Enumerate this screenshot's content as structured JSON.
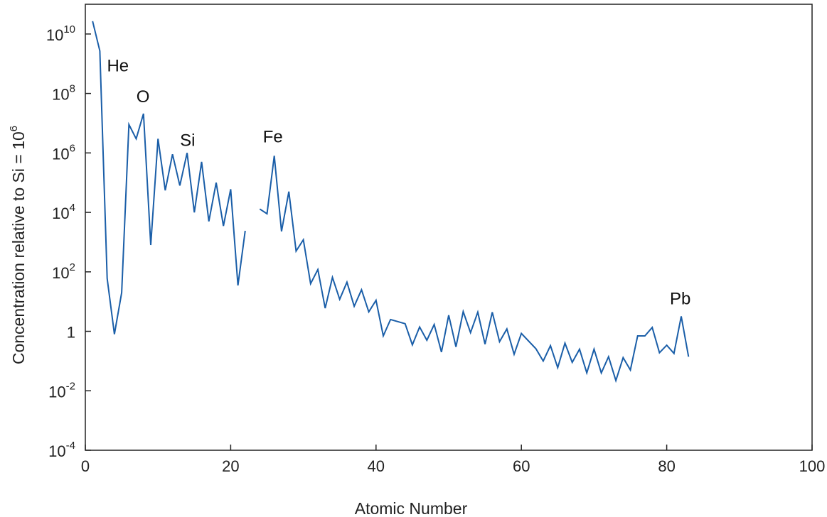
{
  "chart_data": {
    "type": "line",
    "title": "",
    "xlabel": "Atomic Number",
    "ylabel": "Concentration relative to Si = 10",
    "ylabel_exponent": "6",
    "xlim": [
      0,
      100
    ],
    "ylim": [
      0.0001,
      100000000000
    ],
    "yscale": "log",
    "grid": false,
    "color": "#1a5ea8",
    "x_ticks": [
      {
        "value": 0,
        "label": "0"
      },
      {
        "value": 20,
        "label": "20"
      },
      {
        "value": 40,
        "label": "40"
      },
      {
        "value": 60,
        "label": "60"
      },
      {
        "value": 80,
        "label": "80"
      },
      {
        "value": 100,
        "label": "100"
      }
    ],
    "y_ticks": [
      {
        "value": 10000000000,
        "base": "10",
        "exp": "10"
      },
      {
        "value": 100000000,
        "base": "10",
        "exp": "8"
      },
      {
        "value": 1000000,
        "base": "10",
        "exp": "6"
      },
      {
        "value": 10000,
        "base": "10",
        "exp": "4"
      },
      {
        "value": 100,
        "base": "10",
        "exp": "2"
      },
      {
        "value": 1,
        "base": "1",
        "exp": ""
      },
      {
        "value": 0.01,
        "base": "10",
        "exp": "-2"
      },
      {
        "value": 0.0001,
        "base": "10",
        "exp": "-4"
      }
    ],
    "series": [
      {
        "segments": [
          [
            [
              1,
              27000000000
            ],
            [
              2,
              2700000000
            ],
            [
              3,
              60
            ],
            [
              4,
              0.8
            ],
            [
              5,
              20
            ],
            [
              6,
              9000000
            ],
            [
              7,
              3000000
            ],
            [
              8,
              21000000
            ],
            [
              9,
              800
            ],
            [
              10,
              3000000
            ],
            [
              11,
              55000
            ],
            [
              12,
              900000
            ],
            [
              13,
              80000
            ],
            [
              14,
              1000000
            ],
            [
              15,
              10000
            ],
            [
              16,
              500000
            ],
            [
              17,
              5000
            ],
            [
              18,
              100000
            ],
            [
              19,
              3500
            ],
            [
              20,
              60000
            ],
            [
              21,
              35
            ],
            [
              22,
              2400
            ]
          ],
          [
            [
              24,
              13000
            ],
            [
              25,
              9000
            ],
            [
              26,
              800000
            ],
            [
              27,
              2300
            ],
            [
              28,
              50000
            ],
            [
              29,
              500
            ],
            [
              30,
              1200
            ],
            [
              31,
              40
            ],
            [
              32,
              120
            ],
            [
              33,
              6
            ],
            [
              34,
              65
            ],
            [
              35,
              12
            ],
            [
              36,
              45
            ],
            [
              37,
              7
            ],
            [
              38,
              25
            ],
            [
              39,
              4.5
            ],
            [
              40,
              11
            ],
            [
              41,
              0.7
            ],
            [
              42,
              2.5
            ],
            [
              44,
              1.8
            ],
            [
              45,
              0.35
            ],
            [
              46,
              1.4
            ],
            [
              47,
              0.5
            ],
            [
              48,
              1.7
            ],
            [
              49,
              0.2
            ],
            [
              50,
              3.5
            ],
            [
              51,
              0.3
            ],
            [
              52,
              4.6
            ],
            [
              53,
              0.9
            ],
            [
              54,
              4.4
            ],
            [
              55,
              0.37
            ],
            [
              56,
              4.4
            ],
            [
              57,
              0.45
            ],
            [
              58,
              1.2
            ],
            [
              59,
              0.17
            ],
            [
              60,
              0.85
            ],
            [
              62,
              0.26
            ],
            [
              63,
              0.1
            ],
            [
              64,
              0.33
            ],
            [
              65,
              0.06
            ],
            [
              66,
              0.4
            ],
            [
              67,
              0.09
            ],
            [
              68,
              0.25
            ],
            [
              69,
              0.04
            ],
            [
              70,
              0.25
            ],
            [
              71,
              0.04
            ],
            [
              72,
              0.14
            ],
            [
              73,
              0.022
            ],
            [
              74,
              0.13
            ],
            [
              75,
              0.05
            ],
            [
              76,
              0.7
            ],
            [
              77,
              0.7
            ],
            [
              78,
              1.35
            ],
            [
              79,
              0.19
            ],
            [
              80,
              0.34
            ],
            [
              81,
              0.18
            ],
            [
              82,
              3.2
            ],
            [
              83,
              0.14
            ]
          ]
        ]
      }
    ],
    "annotations": [
      {
        "text": "He",
        "x": 2,
        "y": 2700000000
      },
      {
        "text": "O",
        "x": 8,
        "y": 21000000
      },
      {
        "text": "Si",
        "x": 14,
        "y": 1000000
      },
      {
        "text": "Fe",
        "x": 26,
        "y": 800000
      },
      {
        "text": "Pb",
        "x": 82,
        "y": 3.2
      }
    ]
  }
}
